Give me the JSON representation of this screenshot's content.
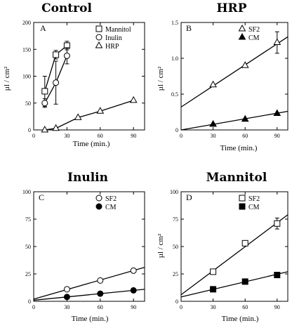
{
  "chart_data": [
    {
      "type": "scatter",
      "title": "Control",
      "panel_label": "A",
      "xlabel": "Time (min.)",
      "ylabel": "µl / cm²",
      "xlim": [
        0,
        100
      ],
      "ylim": [
        0,
        200
      ],
      "xticks": [
        0,
        30,
        60,
        90
      ],
      "yticks": [
        0,
        50,
        100,
        150,
        200
      ],
      "legend_position": "top-right",
      "series": [
        {
          "name": "Mannitol",
          "marker": "square-open",
          "x": [
            10,
            20,
            30
          ],
          "y": [
            72,
            140,
            157
          ],
          "err": [
            28,
            8,
            8
          ],
          "fit": "connect"
        },
        {
          "name": "Inulin",
          "marker": "circle-open",
          "x": [
            10,
            20,
            30
          ],
          "y": [
            50,
            88,
            138
          ],
          "err": [
            8,
            40,
            15
          ],
          "fit": "connect"
        },
        {
          "name": "HRP",
          "marker": "triangle-open",
          "x": [
            10,
            20,
            40,
            60,
            90
          ],
          "y": [
            0,
            3,
            23,
            35,
            55
          ],
          "err": [
            0,
            0,
            0,
            0,
            0
          ],
          "fit": "connect"
        }
      ]
    },
    {
      "type": "scatter",
      "title": "HRP",
      "panel_label": "B",
      "xlabel": "Time (min.)",
      "ylabel": "µl / cm²",
      "xlim": [
        0,
        100
      ],
      "ylim": [
        0,
        1.5
      ],
      "xticks": [
        0,
        30,
        60,
        90
      ],
      "yticks": [
        0,
        0.5,
        1.0,
        1.5
      ],
      "ytick_labels": [
        "0",
        "0.5",
        "1.0",
        "1.5"
      ],
      "legend_position": "top-right",
      "series": [
        {
          "name": "SF2",
          "marker": "triangle-open",
          "x": [
            30,
            60,
            90
          ],
          "y": [
            0.63,
            0.9,
            1.22
          ],
          "err": [
            0,
            0,
            0.15
          ],
          "fit": "line",
          "fit_y": [
            0.32,
            1.3
          ]
        },
        {
          "name": "CM",
          "marker": "triangle-filled",
          "x": [
            30,
            60,
            90
          ],
          "y": [
            0.08,
            0.15,
            0.23
          ],
          "err": [
            0,
            0,
            0
          ],
          "fit": "line",
          "fit_y": [
            0.0,
            0.26
          ]
        }
      ]
    },
    {
      "type": "scatter",
      "title": "Inulin",
      "panel_label": "C",
      "xlabel": "Time (min.)",
      "ylabel": "",
      "xlim": [
        0,
        100
      ],
      "ylim": [
        0,
        100
      ],
      "xticks": [
        0,
        30,
        60,
        90
      ],
      "yticks": [
        0,
        25,
        50,
        75,
        100
      ],
      "legend_position": "top-right",
      "series": [
        {
          "name": "SF2",
          "marker": "circle-open",
          "x": [
            30,
            60,
            90
          ],
          "y": [
            11,
            19,
            28
          ],
          "err": [
            0,
            0,
            0
          ],
          "fit": "line",
          "fit_y": [
            2,
            31
          ]
        },
        {
          "name": "CM",
          "marker": "circle-filled",
          "x": [
            30,
            60,
            90
          ],
          "y": [
            4,
            7,
            10
          ],
          "err": [
            0,
            0,
            0
          ],
          "fit": "line",
          "fit_y": [
            1,
            11
          ]
        }
      ]
    },
    {
      "type": "scatter",
      "title": "Mannitol",
      "panel_label": "D",
      "xlabel": "Time (min.)",
      "ylabel": "µl / cm²",
      "xlim": [
        0,
        100
      ],
      "ylim": [
        0,
        100
      ],
      "xticks": [
        0,
        30,
        60,
        90
      ],
      "yticks": [
        0,
        25,
        50,
        75,
        100
      ],
      "legend_position": "top-right",
      "series": [
        {
          "name": "SF2",
          "marker": "square-open",
          "x": [
            30,
            60,
            90
          ],
          "y": [
            27,
            53,
            71
          ],
          "err": [
            0,
            0,
            5
          ],
          "fit": "line",
          "fit_y": [
            6,
            79
          ]
        },
        {
          "name": "CM",
          "marker": "square-filled",
          "x": [
            30,
            60,
            90
          ],
          "y": [
            11,
            18,
            24
          ],
          "err": [
            0,
            0,
            0
          ],
          "fit": "line",
          "fit_y": [
            4,
            27
          ]
        }
      ]
    }
  ]
}
